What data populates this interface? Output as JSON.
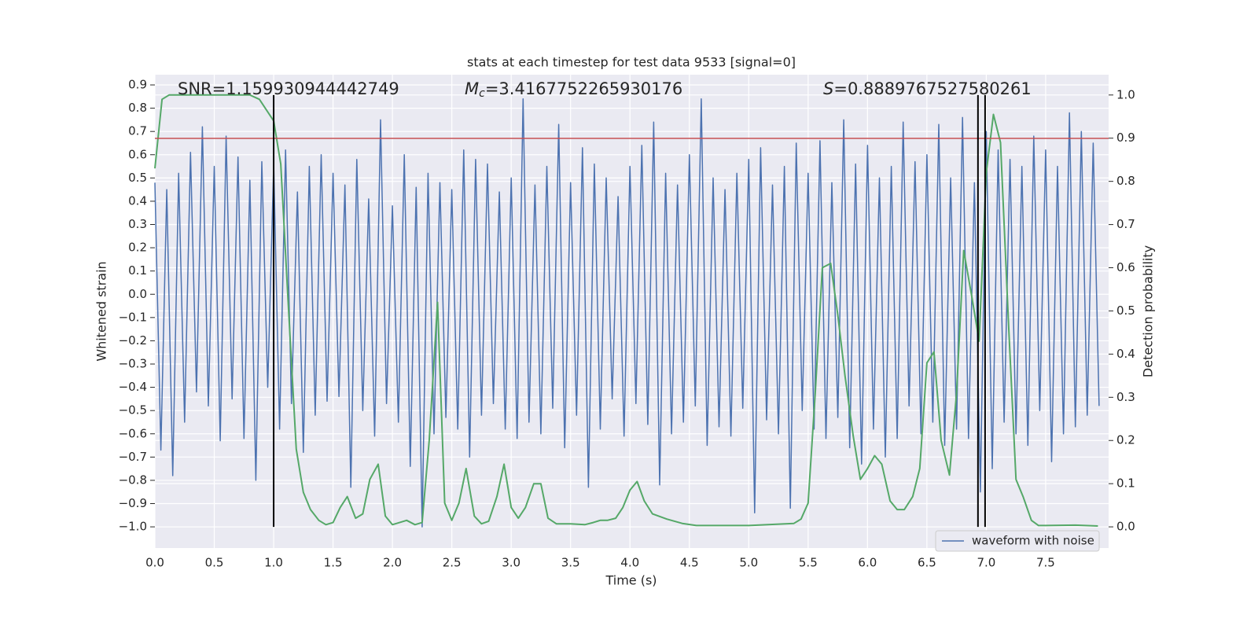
{
  "chart_data": {
    "type": "line",
    "title": "stats at each timestep for test data 9533 [signal=0]",
    "xlabel": "Time (s)",
    "ylabel": "Whitened strain",
    "y2label": "Detection probability",
    "grid": true,
    "legend": "lower right",
    "xlim": [
      0,
      8.03
    ],
    "ylim": [
      -1.091,
      0.944
    ],
    "y2lim": [
      -0.049,
      1.047
    ],
    "xticks": [
      {
        "value": 0,
        "label": "0.0"
      },
      0.5,
      {
        "value": 1,
        "label": "1.0"
      },
      1.5,
      {
        "value": 2,
        "label": "2.0"
      },
      2.5,
      {
        "value": 3,
        "label": "3.0"
      },
      3.5,
      {
        "value": 4,
        "label": "4.0"
      },
      4.5,
      {
        "value": 5,
        "label": "5.0"
      },
      5.5,
      {
        "value": 6,
        "label": "6.0"
      },
      6.5,
      {
        "value": 7,
        "label": "7.0"
      },
      7.5
    ],
    "yticks": [
      {
        "value": -1.0,
        "label": "−1.0"
      },
      {
        "value": -0.9,
        "label": "−0.9"
      },
      {
        "value": -0.8,
        "label": "−0.8"
      },
      {
        "value": -0.7,
        "label": "−0.7"
      },
      {
        "value": -0.6,
        "label": "−0.6"
      },
      {
        "value": -0.5,
        "label": "−0.5"
      },
      {
        "value": -0.4,
        "label": "−0.4"
      },
      {
        "value": -0.3,
        "label": "−0.3"
      },
      {
        "value": -0.2,
        "label": "−0.2"
      },
      {
        "value": -0.1,
        "label": "−0.1"
      },
      {
        "value": 0,
        "label": "0.0"
      },
      0.1,
      0.2,
      0.3,
      0.4,
      0.5,
      0.6,
      0.7,
      0.8,
      0.9
    ],
    "y2ticks": [
      {
        "value": 0,
        "label": "0.0"
      },
      0.1,
      0.2,
      0.3,
      0.4,
      0.5,
      0.6,
      0.7,
      0.8,
      0.9,
      {
        "value": 1,
        "label": "1.0"
      }
    ],
    "annotations": [
      {
        "text": "SNR=1.159930944442749"
      },
      {
        "symbol": "M",
        "subscript": "c",
        "text": "=3.4167752265930176"
      },
      {
        "symbol": "S",
        "text": "=0.8889767527580261"
      }
    ],
    "hline": {
      "value": 0.67,
      "color": "#c44e52"
    },
    "vlines": {
      "values": [
        1.0,
        6.93,
        6.99
      ],
      "range": [
        0,
        1
      ],
      "color": "#000000"
    },
    "series": [
      {
        "name": "waveform with noise",
        "color": "#4c72b0",
        "x": [
          0,
          0.05,
          0.1,
          0.15,
          0.2,
          0.25,
          0.3,
          0.35,
          0.4,
          0.45,
          0.5,
          0.55,
          0.6,
          0.65,
          0.7,
          0.75,
          0.8,
          0.85,
          0.9,
          0.95,
          1,
          1.05,
          1.1,
          1.15,
          1.2,
          1.25,
          1.3,
          1.35,
          1.4,
          1.45,
          1.5,
          1.55,
          1.6,
          1.65,
          1.7,
          1.75,
          1.8,
          1.85,
          1.9,
          1.95,
          2,
          2.05,
          2.1,
          2.15,
          2.2,
          2.25,
          2.3,
          2.35,
          2.4,
          2.45,
          2.5,
          2.55,
          2.6,
          2.65,
          2.7,
          2.75,
          2.8,
          2.85,
          2.9,
          2.95,
          3,
          3.05,
          3.1,
          3.15,
          3.2,
          3.25,
          3.3,
          3.35,
          3.4,
          3.45,
          3.5,
          3.55,
          3.6,
          3.65,
          3.7,
          3.75,
          3.8,
          3.85,
          3.9,
          3.95,
          4,
          4.05,
          4.1,
          4.15,
          4.2,
          4.25,
          4.3,
          4.35,
          4.4,
          4.45,
          4.5,
          4.55,
          4.6,
          4.65,
          4.7,
          4.75,
          4.8,
          4.85,
          4.9,
          4.95,
          5,
          5.05,
          5.1,
          5.15,
          5.2,
          5.25,
          5.3,
          5.35,
          5.4,
          5.45,
          5.5,
          5.55,
          5.6,
          5.65,
          5.7,
          5.75,
          5.8,
          5.85,
          5.9,
          5.95,
          6,
          6.05,
          6.1,
          6.15,
          6.2,
          6.25,
          6.3,
          6.35,
          6.4,
          6.45,
          6.5,
          6.55,
          6.6,
          6.65,
          6.7,
          6.75,
          6.8,
          6.85,
          6.9,
          6.95,
          7,
          7.05,
          7.1,
          7.15,
          7.2,
          7.25,
          7.3,
          7.35,
          7.4,
          7.45,
          7.5,
          7.55,
          7.6,
          7.65,
          7.7,
          7.75,
          7.8,
          7.85,
          7.9,
          7.95
        ],
        "values": [
          0.48,
          -0.67,
          0.45,
          -0.78,
          0.52,
          -0.55,
          0.61,
          -0.42,
          0.72,
          -0.48,
          0.55,
          -0.63,
          0.68,
          -0.45,
          0.59,
          -0.62,
          0.49,
          -0.8,
          0.57,
          -0.4,
          0.56,
          -0.58,
          0.62,
          -0.47,
          0.44,
          -0.68,
          0.55,
          -0.52,
          0.6,
          -0.46,
          0.52,
          -0.44,
          0.47,
          -0.83,
          0.58,
          -0.5,
          0.41,
          -0.61,
          0.75,
          -0.47,
          0.38,
          -0.55,
          0.6,
          -0.74,
          0.46,
          -1.0,
          0.52,
          -0.6,
          0.48,
          -0.53,
          0.45,
          -0.58,
          0.62,
          -0.7,
          0.58,
          -0.52,
          0.56,
          -0.47,
          0.44,
          -0.58,
          0.5,
          -0.62,
          0.84,
          -0.55,
          0.47,
          -0.6,
          0.55,
          -0.49,
          0.73,
          -0.66,
          0.48,
          -0.52,
          0.63,
          -0.83,
          0.56,
          -0.58,
          0.5,
          -0.45,
          0.42,
          -0.61,
          0.55,
          -0.47,
          0.64,
          -0.56,
          0.74,
          -0.82,
          0.52,
          -0.6,
          0.47,
          -0.55,
          0.6,
          -0.48,
          0.84,
          -0.65,
          0.5,
          -0.57,
          0.45,
          -0.61,
          0.52,
          -0.49,
          0.58,
          -0.94,
          0.63,
          -0.54,
          0.47,
          -0.6,
          0.55,
          -0.92,
          0.65,
          -0.5,
          0.52,
          -0.58,
          0.66,
          -0.62,
          0.48,
          -0.53,
          0.75,
          -0.66,
          0.56,
          -0.73,
          0.64,
          -0.58,
          0.5,
          -0.7,
          0.55,
          -0.62,
          0.74,
          -0.48,
          0.57,
          -0.6,
          0.6,
          -0.55,
          0.73,
          -0.65,
          0.5,
          -0.58,
          0.76,
          -0.62,
          0.48,
          -0.85,
          0.7,
          -0.75,
          0.62,
          -0.55,
          0.58,
          -0.6,
          0.55,
          -0.65,
          0.68,
          -0.5,
          0.62,
          -0.72,
          0.55,
          -0.6,
          0.78,
          -0.57,
          0.7,
          -0.52,
          0.65,
          -0.48
        ]
      },
      {
        "color": "#55a868",
        "axis": "y2",
        "x": [
          0,
          0.06,
          0.12,
          0.5,
          0.8,
          0.88,
          1.0,
          1.06,
          1.12,
          1.19,
          1.25,
          1.31,
          1.38,
          1.44,
          1.5,
          1.56,
          1.62,
          1.69,
          1.75,
          1.81,
          1.88,
          1.94,
          2.0,
          2.06,
          2.12,
          2.19,
          2.25,
          2.31,
          2.38,
          2.44,
          2.5,
          2.56,
          2.62,
          2.69,
          2.75,
          2.81,
          2.88,
          2.94,
          3.0,
          3.06,
          3.12,
          3.19,
          3.25,
          3.31,
          3.38,
          3.5,
          3.62,
          3.69,
          3.75,
          3.81,
          3.88,
          3.94,
          4.0,
          4.06,
          4.12,
          4.19,
          4.31,
          4.44,
          4.56,
          5.0,
          5.38,
          5.44,
          5.5,
          5.56,
          5.62,
          5.69,
          5.75,
          5.81,
          5.88,
          5.94,
          6.0,
          6.06,
          6.12,
          6.19,
          6.25,
          6.31,
          6.38,
          6.44,
          6.5,
          6.56,
          6.62,
          6.69,
          6.75,
          6.81,
          6.88,
          6.94,
          7.0,
          7.06,
          7.12,
          7.19,
          7.25,
          7.31,
          7.38,
          7.44,
          7.5,
          7.75,
          7.94
        ],
        "values": [
          0.83,
          0.99,
          1.0,
          1.0,
          1.0,
          0.99,
          0.94,
          0.84,
          0.53,
          0.18,
          0.08,
          0.04,
          0.015,
          0.005,
          0.01,
          0.045,
          0.07,
          0.02,
          0.03,
          0.11,
          0.145,
          0.025,
          0.005,
          0.01,
          0.015,
          0.005,
          0.01,
          0.2,
          0.52,
          0.055,
          0.015,
          0.055,
          0.135,
          0.025,
          0.007,
          0.013,
          0.07,
          0.145,
          0.045,
          0.02,
          0.045,
          0.1,
          0.1,
          0.02,
          0.007,
          0.007,
          0.005,
          0.01,
          0.015,
          0.015,
          0.02,
          0.045,
          0.085,
          0.105,
          0.06,
          0.03,
          0.018,
          0.008,
          0.003,
          0.003,
          0.008,
          0.018,
          0.055,
          0.31,
          0.6,
          0.61,
          0.49,
          0.35,
          0.21,
          0.11,
          0.135,
          0.165,
          0.145,
          0.06,
          0.04,
          0.04,
          0.07,
          0.135,
          0.38,
          0.405,
          0.2,
          0.12,
          0.31,
          0.64,
          0.53,
          0.43,
          0.82,
          0.955,
          0.89,
          0.455,
          0.11,
          0.07,
          0.015,
          0.003,
          0.003,
          0.004,
          0.002
        ]
      }
    ]
  }
}
